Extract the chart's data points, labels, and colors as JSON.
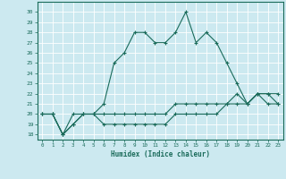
{
  "title": "",
  "xlabel": "Humidex (Indice chaleur)",
  "ylabel": "",
  "bg_color": "#cce9f0",
  "grid_color": "#ffffff",
  "line_color": "#1a6b5a",
  "x": [
    0,
    1,
    2,
    3,
    4,
    5,
    6,
    7,
    8,
    9,
    10,
    11,
    12,
    13,
    14,
    15,
    16,
    17,
    18,
    19,
    20,
    21,
    22,
    23
  ],
  "line1": [
    20,
    20,
    18,
    20,
    20,
    20,
    21,
    25,
    26,
    28,
    28,
    27,
    27,
    28,
    30,
    27,
    28,
    27,
    25,
    23,
    21,
    22,
    21,
    21
  ],
  "line2": [
    20,
    20,
    18,
    19,
    20,
    20,
    20,
    20,
    20,
    20,
    20,
    20,
    20,
    21,
    21,
    21,
    21,
    21,
    21,
    22,
    21,
    22,
    22,
    21
  ],
  "line3": [
    20,
    20,
    18,
    19,
    20,
    20,
    19,
    19,
    19,
    19,
    19,
    19,
    19,
    20,
    20,
    20,
    20,
    20,
    21,
    21,
    21,
    22,
    22,
    22
  ],
  "ylim": [
    17.5,
    31.0
  ],
  "xlim": [
    -0.5,
    23.5
  ],
  "yticks": [
    18,
    19,
    20,
    21,
    22,
    23,
    24,
    25,
    26,
    27,
    28,
    29,
    30
  ],
  "xticks": [
    0,
    1,
    2,
    3,
    4,
    5,
    6,
    7,
    8,
    9,
    10,
    11,
    12,
    13,
    14,
    15,
    16,
    17,
    18,
    19,
    20,
    21,
    22,
    23
  ]
}
